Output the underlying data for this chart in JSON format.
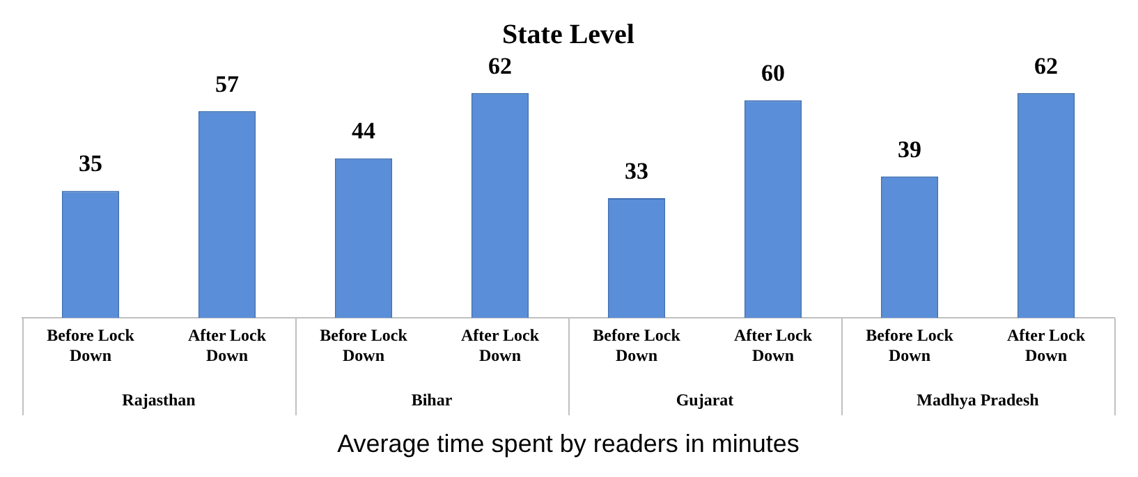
{
  "chart_data": {
    "type": "bar",
    "title": "State Level",
    "xlabel": "Average time spent by readers in minutes",
    "categories": [
      "Before Lock Down",
      "After Lock Down",
      "Before Lock Down",
      "After Lock Down",
      "Before Lock Down",
      "After Lock Down",
      "Before Lock Down",
      "After Lock Down"
    ],
    "values": [
      35,
      57,
      44,
      62,
      33,
      60,
      39,
      62
    ],
    "color": "#5a8ed8",
    "annotations": [
      "Rajasthan",
      "Bihar",
      "Gujarat",
      "Madhya Pradesh"
    ],
    "data_labels": true,
    "grid": false,
    "legend": false
  }
}
